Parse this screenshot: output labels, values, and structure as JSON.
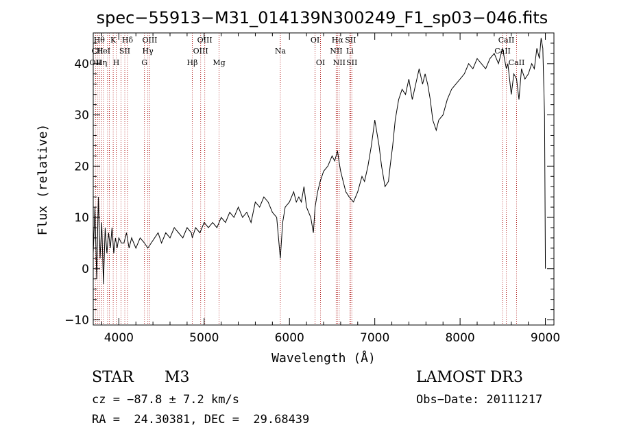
{
  "chart_data": {
    "type": "line",
    "title": "spec−55913−M31_014139N300249_F1_sp03−046.fits",
    "xlabel": "Wavelength (Å)",
    "ylabel": "Flux (relative)",
    "xlim": [
      3700,
      9100
    ],
    "ylim": [
      -11,
      46
    ],
    "xticks": [
      4000,
      5000,
      6000,
      7000,
      8000,
      9000
    ],
    "yticks": [
      -10,
      0,
      10,
      20,
      30,
      40
    ],
    "ytick_labels": [
      "−10",
      "0",
      "10",
      "20",
      "30",
      "40"
    ],
    "grid": false,
    "series": [
      {
        "name": "flux",
        "color": "#000000",
        "x": [
          3700,
          3720,
          3740,
          3760,
          3780,
          3800,
          3820,
          3840,
          3860,
          3880,
          3900,
          3920,
          3940,
          3960,
          3980,
          4000,
          4030,
          4060,
          4090,
          4120,
          4150,
          4200,
          4250,
          4300,
          4340,
          4380,
          4420,
          4460,
          4500,
          4550,
          4600,
          4650,
          4700,
          4750,
          4800,
          4850,
          4861,
          4900,
          4950,
          5000,
          5050,
          5100,
          5150,
          5200,
          5250,
          5300,
          5350,
          5400,
          5450,
          5500,
          5550,
          5600,
          5650,
          5700,
          5750,
          5800,
          5850,
          5893,
          5920,
          5950,
          6000,
          6050,
          6080,
          6110,
          6140,
          6170,
          6200,
          6250,
          6280,
          6300,
          6330,
          6360,
          6400,
          6450,
          6500,
          6530,
          6563,
          6580,
          6600,
          6630,
          6660,
          6700,
          6750,
          6800,
          6850,
          6880,
          6920,
          6960,
          7000,
          7020,
          7050,
          7080,
          7120,
          7160,
          7180,
          7210,
          7240,
          7280,
          7320,
          7360,
          7400,
          7440,
          7480,
          7520,
          7560,
          7590,
          7620,
          7650,
          7680,
          7700,
          7720,
          7750,
          7800,
          7850,
          7900,
          7950,
          8000,
          8050,
          8100,
          8150,
          8200,
          8250,
          8300,
          8350,
          8400,
          8450,
          8498,
          8520,
          8542,
          8560,
          8600,
          8630,
          8662,
          8690,
          8720,
          8760,
          8800,
          8840,
          8870,
          8900,
          8930,
          8950,
          8970,
          8990,
          9000
        ],
        "y": [
          3,
          12,
          -2,
          14,
          2,
          9,
          -3,
          8,
          3,
          7,
          4,
          8,
          3,
          6,
          4,
          6,
          5,
          5,
          7,
          4,
          6,
          4,
          6,
          5,
          4,
          5,
          6,
          7,
          5,
          7,
          6,
          8,
          7,
          6,
          8,
          7,
          6,
          8,
          7,
          9,
          8,
          9,
          8,
          10,
          9,
          11,
          10,
          12,
          10,
          11,
          9,
          13,
          12,
          14,
          13,
          11,
          10,
          2,
          9,
          12,
          13,
          15,
          13,
          14,
          13,
          16,
          12,
          10,
          7,
          12,
          15,
          17,
          19,
          20,
          22,
          21,
          23,
          21,
          19,
          17,
          15,
          14,
          13,
          15,
          18,
          17,
          20,
          24,
          29,
          27,
          24,
          20,
          16,
          17,
          20,
          24,
          29,
          33,
          35,
          34,
          37,
          33,
          36,
          39,
          36,
          38,
          36,
          33,
          29,
          28,
          27,
          29,
          30,
          33,
          35,
          36,
          37,
          38,
          40,
          39,
          41,
          40,
          39,
          41,
          42,
          40,
          43,
          41,
          39,
          40,
          34,
          38,
          37,
          33,
          39,
          37,
          38,
          40,
          39,
          43,
          41,
          45,
          43,
          30,
          0
        ]
      }
    ],
    "line_markers": [
      {
        "x": 3727,
        "label": "OII",
        "row": 3
      },
      {
        "x": 3750,
        "label": "CII",
        "row": 2
      },
      {
        "x": 3771,
        "label": "Hθ",
        "row": 1
      },
      {
        "x": 3798,
        "label": "Hη",
        "row": 3
      },
      {
        "x": 3820,
        "label": "HeI",
        "row": 2
      },
      {
        "x": 3868,
        "label": "",
        "row": 0
      },
      {
        "x": 3889,
        "label": "",
        "row": 0
      },
      {
        "x": 3934,
        "label": "K",
        "row": 1
      },
      {
        "x": 3970,
        "label": "H",
        "row": 3
      },
      {
        "x": 4026,
        "label": "",
        "row": 0
      },
      {
        "x": 4070,
        "label": "SII",
        "row": 2
      },
      {
        "x": 4102,
        "label": "Hδ",
        "row": 1
      },
      {
        "x": 4300,
        "label": "G",
        "row": 3
      },
      {
        "x": 4340,
        "label": "Hγ",
        "row": 2
      },
      {
        "x": 4363,
        "label": "OIII",
        "row": 1
      },
      {
        "x": 4861,
        "label": "Hβ",
        "row": 3
      },
      {
        "x": 4959,
        "label": "OIII",
        "row": 2
      },
      {
        "x": 5007,
        "label": "OIII",
        "row": 1
      },
      {
        "x": 5175,
        "label": "Mg",
        "row": 3
      },
      {
        "x": 5893,
        "label": "Na",
        "row": 2
      },
      {
        "x": 6300,
        "label": "OI",
        "row": 1
      },
      {
        "x": 6364,
        "label": "OI",
        "row": 3
      },
      {
        "x": 6548,
        "label": "NII",
        "row": 2
      },
      {
        "x": 6563,
        "label": "Hα",
        "row": 1
      },
      {
        "x": 6583,
        "label": "NII",
        "row": 3
      },
      {
        "x": 6708,
        "label": "Li",
        "row": 2
      },
      {
        "x": 6716,
        "label": "SII",
        "row": 1
      },
      {
        "x": 6731,
        "label": "SII",
        "row": 3
      },
      {
        "x": 8498,
        "label": "CaII",
        "row": 2
      },
      {
        "x": 8542,
        "label": "CaII",
        "row": 1
      },
      {
        "x": 8662,
        "label": "CaII",
        "row": 3
      }
    ]
  },
  "info": {
    "object_class": "STAR",
    "subclass": "M3",
    "survey": "LAMOST DR3",
    "redshift_line": "cz = −87.8 ± 7.2 km/s",
    "obs_date_line": "Obs−Date: 20111217",
    "coords_line": "RA =  24.30381, DEC =  29.68439"
  },
  "colors": {
    "spectrum": "#000000",
    "marker_line": "#b22222",
    "axes": "#000000",
    "background": "#ffffff"
  }
}
